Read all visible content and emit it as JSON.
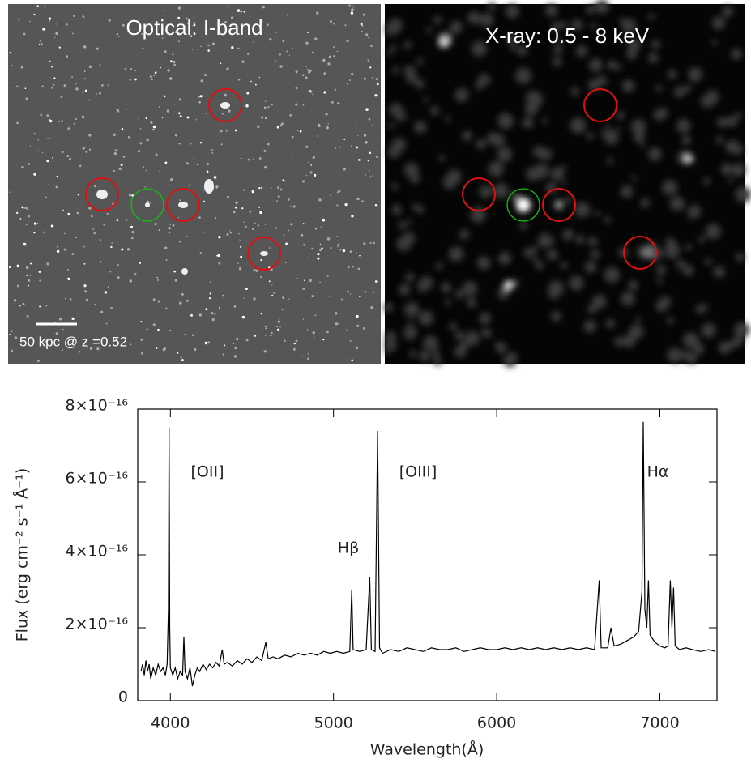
{
  "panels": [
    {
      "title": "Optical: I-band",
      "scale_label": "50 kpc @ z =0.52"
    },
    {
      "title": "X-ray: 0.5 - 8 keV"
    }
  ],
  "chart_data": {
    "type": "line",
    "xlabel": "Wavelength(Å)",
    "ylabel": "Flux (erg cm⁻² s⁻¹ Å⁻¹)",
    "annotations": [
      "[OII]",
      "Hβ",
      "[OIII]",
      "Hα"
    ],
    "color": "#000000",
    "xlim": [
      3800,
      7350
    ],
    "xticks": [
      4000,
      5000,
      6000,
      7000
    ],
    "ylim": [
      0,
      8e-16
    ],
    "yticks": [
      0,
      {
        "value": 2e-16,
        "label": "2×10⁻¹⁶"
      },
      {
        "value": 4e-16,
        "label": "4×10⁻¹⁶"
      },
      {
        "value": 6e-16,
        "label": "6×10⁻¹⁶"
      },
      {
        "value": 8e-16,
        "label": "8×10⁻¹⁶"
      }
    ],
    "x": [
      3820,
      3830,
      3840,
      3850,
      3860,
      3870,
      3880,
      3895,
      3910,
      3925,
      3940,
      3955,
      3970,
      3980,
      3988,
      3992,
      3996,
      4000,
      4015,
      4030,
      4045,
      4060,
      4075,
      4083,
      4090,
      4105,
      4120,
      4135,
      4150,
      4165,
      4180,
      4200,
      4220,
      4240,
      4260,
      4280,
      4300,
      4318,
      4330,
      4350,
      4380,
      4410,
      4440,
      4470,
      4500,
      4530,
      4560,
      4585,
      4600,
      4630,
      4660,
      4700,
      4740,
      4780,
      4820,
      4860,
      4900,
      4940,
      4980,
      5020,
      5060,
      5100,
      5112,
      5120,
      5160,
      5200,
      5222,
      5232,
      5255,
      5270,
      5282,
      5300,
      5350,
      5400,
      5450,
      5500,
      5550,
      5600,
      5650,
      5700,
      5750,
      5800,
      5850,
      5900,
      5950,
      6000,
      6050,
      6100,
      6150,
      6200,
      6250,
      6300,
      6350,
      6400,
      6450,
      6500,
      6550,
      6600,
      6628,
      6640,
      6680,
      6700,
      6720,
      6760,
      6800,
      6840,
      6870,
      6890,
      6898,
      6908,
      6920,
      6930,
      6940,
      6970,
      7000,
      7030,
      7050,
      7064,
      7074,
      7084,
      7094,
      7120,
      7160,
      7200,
      7250,
      7300,
      7340
    ],
    "values": [
      8e-17,
      1e-16,
      7e-17,
      1.1e-16,
      8e-17,
      1e-16,
      6e-17,
      9e-17,
      7e-17,
      1e-16,
      8e-17,
      9e-17,
      7e-17,
      1e-16,
      2.5e-16,
      7.5e-16,
      2e-16,
      9e-17,
      7e-17,
      9e-17,
      6e-17,
      8e-17,
      7e-17,
      1.75e-16,
      8e-17,
      6e-17,
      9e-17,
      4e-17,
      7e-17,
      9e-17,
      8e-17,
      1e-16,
      8.5e-17,
      1e-16,
      9e-17,
      1.05e-16,
      9.5e-17,
      1.4e-16,
      1e-16,
      1.05e-16,
      9.5e-17,
      1.1e-16,
      1e-16,
      1.15e-16,
      1.05e-16,
      1.2e-16,
      1.1e-16,
      1.6e-16,
      1.15e-16,
      1.2e-16,
      1.15e-16,
      1.25e-16,
      1.2e-16,
      1.3e-16,
      1.25e-16,
      1.3e-16,
      1.25e-16,
      1.35e-16,
      1.3e-16,
      1.35e-16,
      1.3e-16,
      1.35e-16,
      3.05e-16,
      1.4e-16,
      1.35e-16,
      1.4e-16,
      3.4e-16,
      1.4e-16,
      1.35e-16,
      7.4e-16,
      1.45e-16,
      1.3e-16,
      1.4e-16,
      1.35e-16,
      1.45e-16,
      1.4e-16,
      1.35e-16,
      1.45e-16,
      1.4e-16,
      1.4e-16,
      1.45e-16,
      1.35e-16,
      1.4e-16,
      1.45e-16,
      1.4e-16,
      1.4e-16,
      1.45e-16,
      1.4e-16,
      1.45e-16,
      1.4e-16,
      1.45e-16,
      1.4e-16,
      1.45e-16,
      1.4e-16,
      1.45e-16,
      1.4e-16,
      1.45e-16,
      1.4e-16,
      3.3e-16,
      1.45e-16,
      1.45e-16,
      2e-16,
      1.5e-16,
      1.55e-16,
      1.65e-16,
      1.75e-16,
      1.9e-16,
      3e-16,
      7.65e-16,
      2.5e-16,
      2e-16,
      3.3e-16,
      1.8e-16,
      1.6e-16,
      1.5e-16,
      1.45e-16,
      1.5e-16,
      3.3e-16,
      2e-16,
      3.1e-16,
      1.5e-16,
      1.4e-16,
      1.45e-16,
      1.4e-16,
      1.35e-16,
      1.4e-16,
      1.35e-16
    ]
  }
}
